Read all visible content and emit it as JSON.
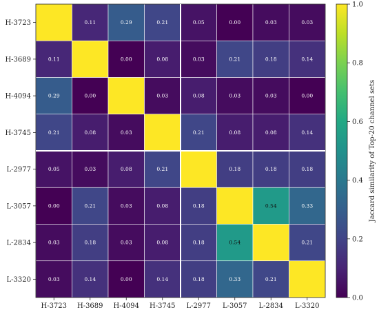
{
  "chart_data": {
    "type": "heatmap",
    "title": "",
    "rows": [
      "H-3723",
      "H-3689",
      "H-4094",
      "H-3745",
      "L-2977",
      "L-3057",
      "L-2834",
      "L-3320"
    ],
    "columns": [
      "H-3723",
      "H-3689",
      "H-4094",
      "H-3745",
      "L-2977",
      "L-3057",
      "L-2834",
      "L-3320"
    ],
    "values": [
      [
        1.0,
        0.11,
        0.29,
        0.21,
        0.05,
        0.0,
        0.03,
        0.03
      ],
      [
        0.11,
        1.0,
        0.0,
        0.08,
        0.03,
        0.21,
        0.18,
        0.14
      ],
      [
        0.29,
        0.0,
        1.0,
        0.03,
        0.08,
        0.03,
        0.03,
        0.0
      ],
      [
        0.21,
        0.08,
        0.03,
        1.0,
        0.21,
        0.08,
        0.08,
        0.14
      ],
      [
        0.05,
        0.03,
        0.08,
        0.21,
        1.0,
        0.18,
        0.18,
        0.18
      ],
      [
        0.0,
        0.21,
        0.03,
        0.08,
        0.18,
        1.0,
        0.54,
        0.33
      ],
      [
        0.03,
        0.18,
        0.03,
        0.08,
        0.18,
        0.54,
        1.0,
        0.21
      ],
      [
        0.03,
        0.14,
        0.0,
        0.14,
        0.18,
        0.33,
        0.21,
        1.0
      ]
    ],
    "show_labels_off_diagonal": true,
    "group_separator_after_index": 3,
    "colormap": "viridis",
    "colorbar": {
      "label": "Jaccard similarity of Top-20 channel sets",
      "range": [
        0.0,
        1.0
      ],
      "ticks": [
        "0.0",
        "0.2",
        "0.4",
        "0.6",
        "0.8",
        "1.0"
      ]
    }
  }
}
